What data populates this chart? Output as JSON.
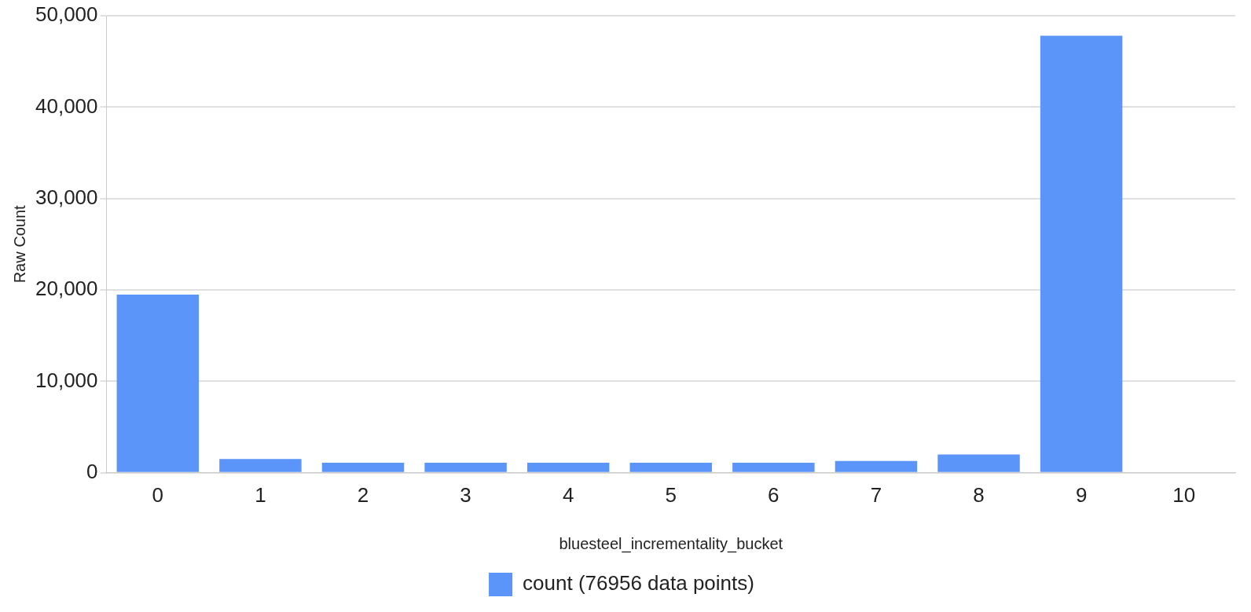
{
  "chart_data": {
    "type": "bar",
    "xlabel": "bluesteel_incrementality_bucket",
    "ylabel": "Raw Count",
    "categories": [
      "0",
      "1",
      "2",
      "3",
      "4",
      "5",
      "6",
      "7",
      "8",
      "9",
      "10"
    ],
    "series": [
      {
        "name": "count (76956 data points)",
        "color": "#5b95f9",
        "values": [
          19500,
          1500,
          1100,
          1100,
          1100,
          1100,
          1100,
          1300,
          2000,
          47800,
          0
        ]
      }
    ],
    "ylim": [
      0,
      50000
    ],
    "yticks": [
      {
        "value": 0,
        "label": "0"
      },
      {
        "value": 10000,
        "label": "10,000"
      },
      {
        "value": 20000,
        "label": "20,000"
      },
      {
        "value": 30000,
        "label": "30,000"
      },
      {
        "value": 40000,
        "label": "40,000"
      },
      {
        "value": 50000,
        "label": "50,000"
      }
    ],
    "grid": "y",
    "legend": "bottom"
  }
}
